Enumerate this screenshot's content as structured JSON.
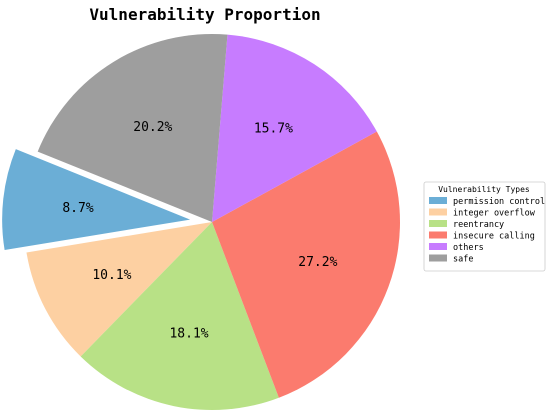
{
  "chart_data": {
    "type": "pie",
    "title": "Vulnerability Proportion",
    "categories": [
      "permission control",
      "integer overflow",
      "reentrancy",
      "insecure calling",
      "others",
      "safe"
    ],
    "values": [
      8.7,
      10.1,
      18.1,
      27.2,
      15.7,
      20.2
    ],
    "value_labels": [
      "8.7%",
      "10.1%",
      "18.1%",
      "27.2%",
      "15.7%",
      "20.2%"
    ],
    "colors": [
      "#6baed6",
      "#fdd0a2",
      "#b8e186",
      "#fb7b6e",
      "#c77cff",
      "#9e9e9e"
    ],
    "exploded": [
      "permission control"
    ],
    "legend": {
      "title": "Vulnerability Types",
      "placement": "right"
    }
  }
}
